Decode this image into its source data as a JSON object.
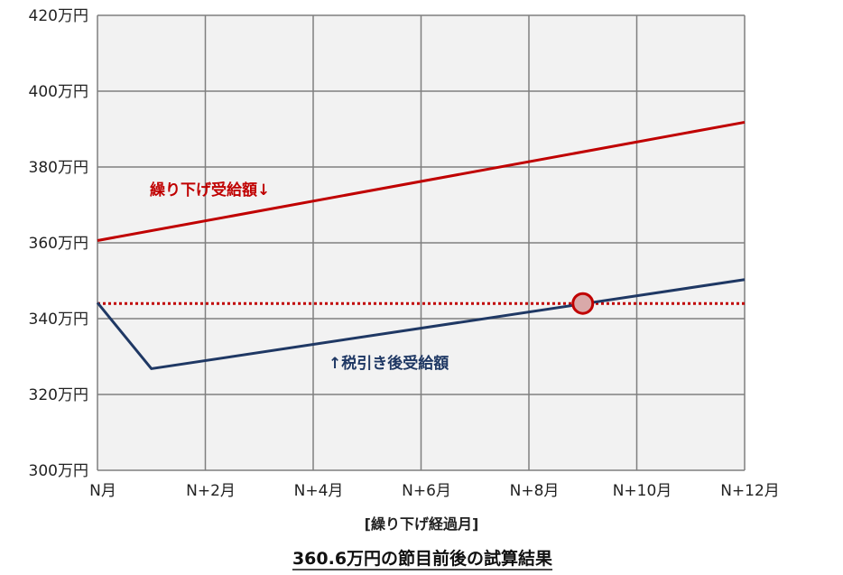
{
  "chart_data": {
    "type": "line",
    "title": "360.6万円の節目前後の試算結果",
    "xlabel": "[繰り下げ経過月]",
    "ylabel": "",
    "x": [
      0,
      1,
      2,
      3,
      4,
      5,
      6,
      7,
      8,
      9,
      10,
      11,
      12
    ],
    "x_tick_values": [
      0,
      2,
      4,
      6,
      8,
      10,
      12
    ],
    "x_tick_labels": [
      "N月",
      "N+2月",
      "N+4月",
      "N+6月",
      "N+8月",
      "N+10月",
      "N+12月"
    ],
    "xlim": [
      0,
      12
    ],
    "ylim": [
      300,
      420
    ],
    "y_tick_values": [
      300,
      320,
      340,
      360,
      380,
      400,
      420
    ],
    "y_tick_labels": [
      "300万円",
      "320万円",
      "340万円",
      "360万円",
      "380万円",
      "400万円",
      "420万円"
    ],
    "grid": true,
    "series": [
      {
        "name": "繰り下げ受給額↓",
        "color": "#c00000",
        "points": [
          [
            0,
            360.6
          ],
          [
            12,
            391.8
          ]
        ]
      },
      {
        "name": "↑税引き後受給額",
        "color": "#1f3864",
        "points": [
          [
            0,
            344.2
          ],
          [
            1,
            326.8
          ],
          [
            12,
            350.3
          ]
        ]
      }
    ],
    "reference_line": {
      "y": 344.0,
      "color": "#c00000",
      "style": "dotted"
    },
    "marker": {
      "x": 9,
      "y": 344.0,
      "color": "#c00000",
      "shape": "circle"
    }
  }
}
